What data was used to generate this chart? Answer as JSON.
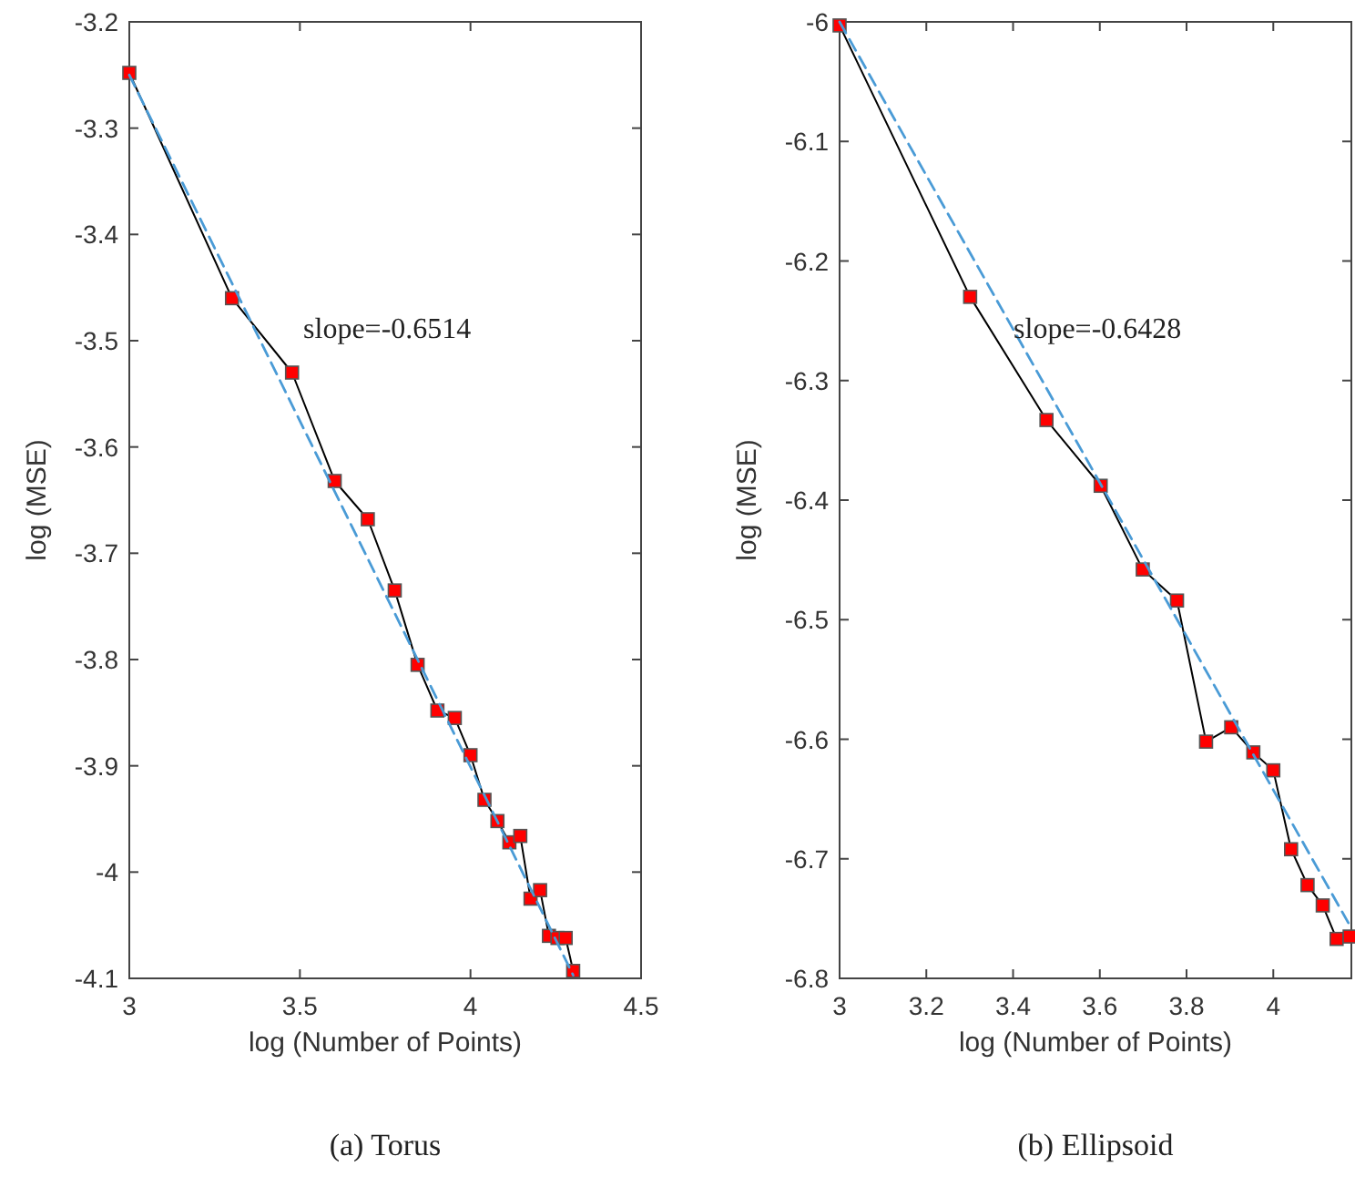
{
  "chart_data": [
    {
      "type": "line",
      "title": "(a) Torus",
      "xlabel": "log (Number of Points)",
      "ylabel": "log (MSE)",
      "xlim": [
        3,
        4.5
      ],
      "xticks": [
        3,
        3.5,
        4,
        4.5
      ],
      "ylim": [
        -4.1,
        -3.2
      ],
      "yticks": [
        -4.1,
        -4,
        -3.9,
        -3.8,
        -3.7,
        -3.6,
        -3.5,
        -3.4,
        -3.3,
        -3.2
      ],
      "grid": false,
      "annotations": [
        "slope=-0.6514"
      ],
      "series": [
        {
          "color": "#000000",
          "marker": "square",
          "x": [
            3,
            3.301,
            3.477,
            3.602,
            3.699,
            3.778,
            3.845,
            3.903,
            3.954,
            4,
            4.041,
            4.079,
            4.114,
            4.146,
            4.176,
            4.204,
            4.23,
            4.255,
            4.279,
            4.301
          ],
          "values": [
            -3.248,
            -3.46,
            -3.53,
            -3.632,
            -3.668,
            -3.735,
            -3.805,
            -3.848,
            -3.855,
            -3.89,
            -3.932,
            -3.952,
            -3.972,
            -3.966,
            -4.025,
            -4.017,
            -4.06,
            -4.062,
            -4.062,
            -4.093
          ]
        },
        {
          "color": "#4a9bd6",
          "marker": "none",
          "line_style": "dashed",
          "x": [
            3,
            4.301
          ],
          "values": [
            -3.25,
            -4.097
          ]
        }
      ]
    },
    {
      "type": "line",
      "title": "(b) Ellipsoid",
      "xlabel": "log (Number of Points)",
      "ylabel": "log (MSE)",
      "xlim": [
        3,
        4.18
      ],
      "xticks": [
        3,
        3.2,
        3.4,
        3.6,
        3.8,
        4
      ],
      "ylim": [
        -6.8,
        -6
      ],
      "yticks": [
        -6.8,
        -6.7,
        -6.6,
        -6.5,
        -6.4,
        -6.3,
        -6.2,
        -6.1,
        -6
      ],
      "grid": false,
      "annotations": [
        "slope=-0.6428"
      ],
      "series": [
        {
          "color": "#000000",
          "marker": "square",
          "x": [
            3,
            3.301,
            3.477,
            3.602,
            3.699,
            3.778,
            3.845,
            3.903,
            3.954,
            4,
            4.041,
            4.079,
            4.114,
            4.146,
            4.176
          ],
          "values": [
            -6.003,
            -6.23,
            -6.333,
            -6.388,
            -6.458,
            -6.484,
            -6.602,
            -6.59,
            -6.611,
            -6.626,
            -6.692,
            -6.722,
            -6.739,
            -6.767,
            -6.765
          ]
        },
        {
          "color": "#4a9bd6",
          "marker": "none",
          "line_style": "dashed",
          "x": [
            3,
            4.18
          ],
          "values": [
            -6.0,
            -6.758
          ]
        }
      ]
    }
  ]
}
